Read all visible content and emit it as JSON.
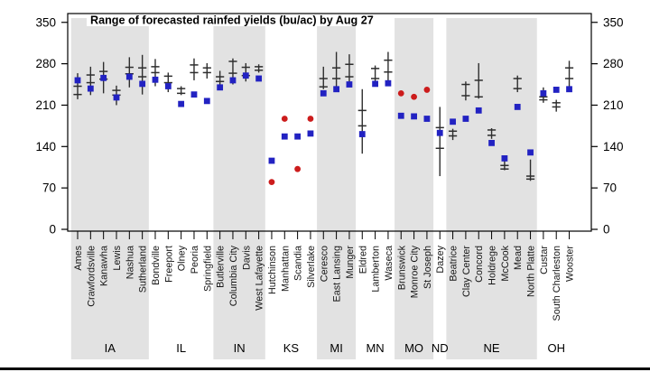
{
  "page": {
    "background": "#ffffff"
  },
  "chart_data": {
    "type": "scatter",
    "title": "Range of forecasted rainfed yields (bu/ac) by Aug 27",
    "xlabel": "",
    "ylabel": "",
    "ylim": [
      0,
      350
    ],
    "yticks": [
      0,
      70,
      140,
      210,
      280,
      350
    ],
    "grid": false,
    "legend_position": "none",
    "layout": {
      "x_labels_rotated_90": true,
      "alternating_state_bands": true,
      "y_ticks_on_both_sides": true
    },
    "colors": {
      "band": "#e2e2e2",
      "range_bar": "#2e2e2e",
      "median_marker": "#2222c2",
      "observed_marker": "#cc1c1c",
      "border": "#000000"
    },
    "states": [
      {
        "code": "IA",
        "shaded": true
      },
      {
        "code": "IL",
        "shaded": false
      },
      {
        "code": "IN",
        "shaded": true
      },
      {
        "code": "KS",
        "shaded": false
      },
      {
        "code": "MI",
        "shaded": true
      },
      {
        "code": "MN",
        "shaded": false
      },
      {
        "code": "MO",
        "shaded": true
      },
      {
        "code": "ND",
        "shaded": false
      },
      {
        "code": "NE",
        "shaded": true
      },
      {
        "code": "OH",
        "shaded": false
      }
    ],
    "locations": [
      {
        "state": "IA",
        "name": "Ames",
        "median": 252,
        "range": [
          220,
          264
        ],
        "ticks": [
          228,
          242
        ]
      },
      {
        "state": "IA",
        "name": "Crawfordsville",
        "median": 238,
        "range": [
          227,
          275
        ],
        "ticks": [
          248,
          261
        ]
      },
      {
        "state": "IA",
        "name": "Kanawha",
        "median": 256,
        "range": [
          230,
          283
        ],
        "ticks": [
          254,
          267
        ]
      },
      {
        "state": "IA",
        "name": "Lewis",
        "median": 223,
        "range": [
          210,
          243
        ],
        "ticks": [
          227,
          235
        ]
      },
      {
        "state": "IA",
        "name": "Nashua",
        "median": 258,
        "range": [
          240,
          291
        ],
        "ticks": [
          263,
          274
        ]
      },
      {
        "state": "IA",
        "name": "Sutherland",
        "median": 246,
        "range": [
          228,
          295
        ],
        "ticks": [
          258,
          273
        ]
      },
      {
        "state": "IL",
        "name": "Bondville",
        "median": 253,
        "range": [
          242,
          288
        ],
        "ticks": [
          265,
          275
        ]
      },
      {
        "state": "IL",
        "name": "Freeport",
        "median": 242,
        "range": [
          232,
          265
        ],
        "ticks": [
          248,
          259
        ]
      },
      {
        "state": "IL",
        "name": "Olney",
        "median": 212,
        "range": [
          227,
          242
        ],
        "ticks": [
          230,
          238
        ]
      },
      {
        "state": "IL",
        "name": "Peoria",
        "median": 228,
        "range": [
          252,
          289
        ],
        "ticks": [
          265,
          278
        ]
      },
      {
        "state": "IL",
        "name": "Springfield",
        "median": 217,
        "range": [
          255,
          281
        ],
        "ticks": [
          265,
          273
        ]
      },
      {
        "state": "IN",
        "name": "Butlerville",
        "median": 240,
        "range": [
          237,
          268
        ],
        "ticks": [
          250,
          258
        ]
      },
      {
        "state": "IN",
        "name": "Columbia City",
        "median": 252,
        "range": [
          245,
          289
        ],
        "ticks": [
          264,
          284
        ]
      },
      {
        "state": "IN",
        "name": "Davis",
        "median": 260,
        "range": [
          250,
          281
        ],
        "ticks": [
          260,
          274
        ]
      },
      {
        "state": "IN",
        "name": "West Lafayette",
        "median": 255,
        "range": [
          265,
          279
        ],
        "ticks": [
          269,
          275
        ]
      },
      {
        "state": "KS",
        "name": "Hutchinson",
        "median": 116,
        "red": 80
      },
      {
        "state": "KS",
        "name": "Manhattan",
        "median": 157,
        "red": 187
      },
      {
        "state": "KS",
        "name": "Scandia",
        "median": 157,
        "red": 102
      },
      {
        "state": "KS",
        "name": "Silverlake",
        "median": 162,
        "red": 187
      },
      {
        "state": "MI",
        "name": "Ceresco",
        "median": 230,
        "range": [
          237,
          275
        ],
        "ticks": [
          241,
          255
        ]
      },
      {
        "state": "MI",
        "name": "East Lansing",
        "median": 237,
        "range": [
          235,
          300
        ],
        "ticks": [
          255,
          273
        ]
      },
      {
        "state": "MI",
        "name": "Munger",
        "median": 245,
        "range": [
          242,
          296
        ],
        "ticks": [
          258,
          279
        ]
      },
      {
        "state": "MN",
        "name": "Eldred",
        "median": 161,
        "range": [
          128,
          237
        ],
        "ticks": [
          175,
          201
        ]
      },
      {
        "state": "MN",
        "name": "Lamberton",
        "median": 246,
        "range": [
          250,
          277
        ],
        "ticks": [
          255,
          272
        ]
      },
      {
        "state": "MN",
        "name": "Waseca",
        "median": 247,
        "range": [
          250,
          300
        ],
        "ticks": [
          266,
          286
        ]
      },
      {
        "state": "MO",
        "name": "Brunswick",
        "median": 192,
        "red": 230
      },
      {
        "state": "MO",
        "name": "Monroe City",
        "median": 191,
        "red": 224
      },
      {
        "state": "MO",
        "name": "St Joseph",
        "median": 187,
        "red": 236
      },
      {
        "state": "ND",
        "name": "Dazey",
        "median": 163,
        "range": [
          90,
          207
        ],
        "ticks": [
          137,
          172
        ]
      },
      {
        "state": "NE",
        "name": "Beatrice",
        "median": 182,
        "range": [
          151,
          170
        ],
        "ticks": [
          158,
          166
        ]
      },
      {
        "state": "NE",
        "name": "Clay Center",
        "median": 187,
        "range": [
          218,
          250
        ],
        "ticks": [
          226,
          245
        ]
      },
      {
        "state": "NE",
        "name": "Concord",
        "median": 201,
        "range": [
          221,
          281
        ],
        "ticks": [
          224,
          252
        ]
      },
      {
        "state": "NE",
        "name": "Holdrege",
        "median": 146,
        "range": [
          153,
          171
        ],
        "ticks": [
          159,
          168
        ]
      },
      {
        "state": "NE",
        "name": "McCook",
        "median": 120,
        "range": [
          100,
          125
        ],
        "ticks": [
          102,
          108
        ]
      },
      {
        "state": "NE",
        "name": "Mead",
        "median": 207,
        "range": [
          232,
          260
        ],
        "ticks": [
          238,
          255
        ]
      },
      {
        "state": "NE",
        "name": "North Platte",
        "median": 130,
        "range": [
          82,
          118
        ],
        "ticks": [
          85,
          90
        ]
      },
      {
        "state": "OH",
        "name": "Custar",
        "median": 230,
        "range": [
          214,
          240
        ],
        "ticks": [
          219,
          224
        ]
      },
      {
        "state": "OH",
        "name": "South Charleston",
        "median": 236,
        "range": [
          199,
          219
        ],
        "ticks": [
          207,
          214
        ]
      },
      {
        "state": "OH",
        "name": "Wooster",
        "median": 237,
        "range": [
          242,
          285
        ],
        "ticks": [
          255,
          273
        ]
      }
    ]
  }
}
